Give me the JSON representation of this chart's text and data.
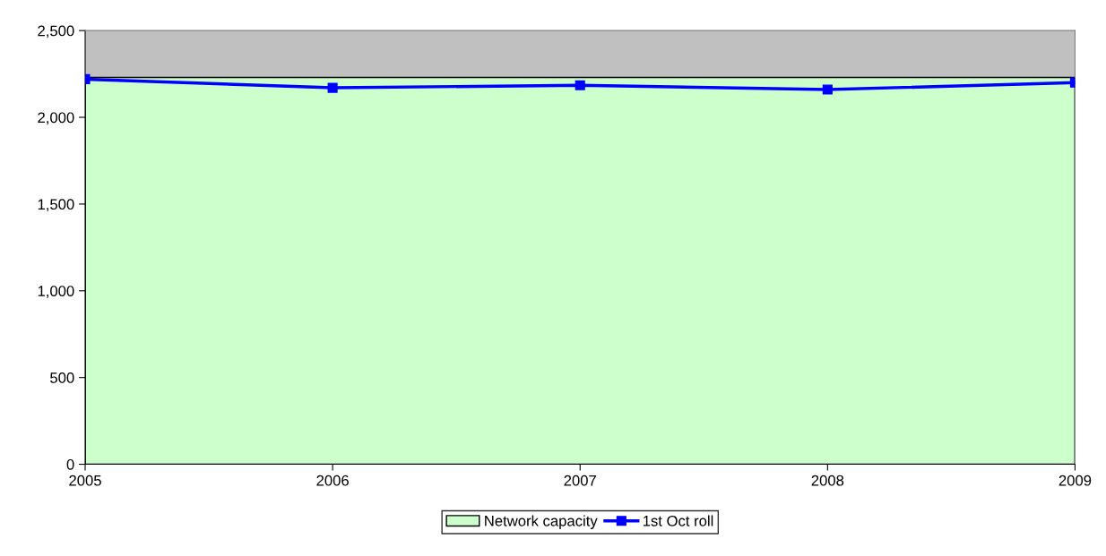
{
  "chart_data": {
    "type": "line",
    "x": [
      2005,
      2006,
      2007,
      2008,
      2009
    ],
    "series": [
      {
        "name": "Network capacity",
        "type": "area",
        "color": "#ccffcc",
        "values": [
          2230,
          2230,
          2230,
          2230,
          2230
        ]
      },
      {
        "name": "1st Oct roll",
        "color": "#0000ff",
        "marker": "square",
        "values": [
          2220,
          2170,
          2185,
          2160,
          2200
        ]
      }
    ],
    "xlim": [
      2005,
      2009
    ],
    "xticks": [
      2005,
      2006,
      2007,
      2008,
      2009
    ],
    "ylim": [
      0,
      2500
    ],
    "yticks": [
      {
        "value": 0,
        "label": "0"
      },
      {
        "value": 500,
        "label": "500"
      },
      {
        "value": 1000,
        "label": "1,000"
      },
      {
        "value": 1500,
        "label": "1,500"
      },
      {
        "value": 2000,
        "label": "2,000"
      },
      {
        "value": 2500,
        "label": "2,500"
      }
    ],
    "grid": false,
    "legend": "bottom"
  }
}
